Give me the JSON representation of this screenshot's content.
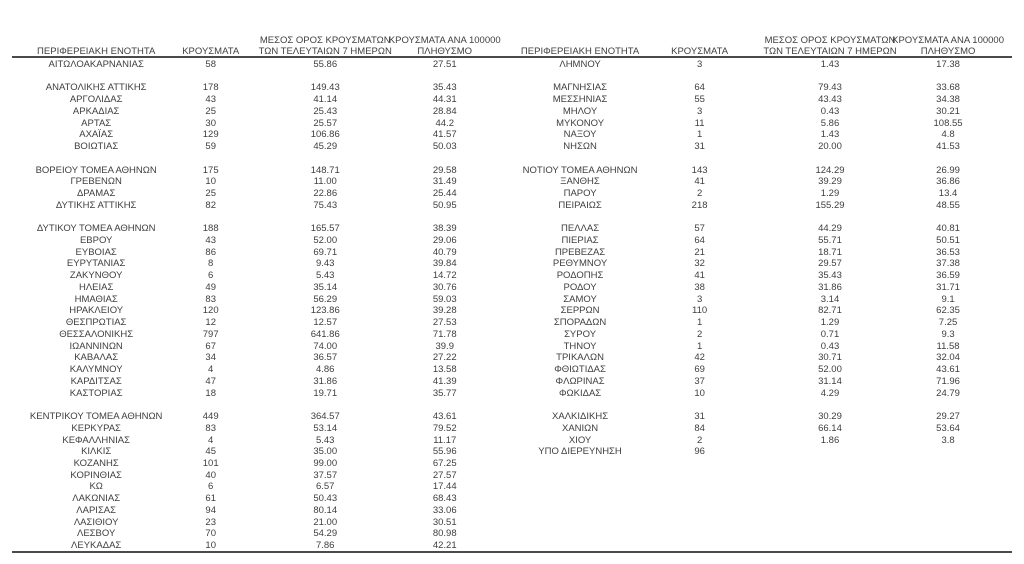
{
  "headers": {
    "region": "ΠΕΡΙΦΕΡΕΙΑΚΗ ΕΝΟΤΗΤΑ",
    "cases": "ΚΡΟΥΣΜΑΤΑ",
    "avg7_line1": "ΜΕΣΟΣ ΟΡΟΣ ΚΡΟΥΣΜΑΤΩΝ",
    "avg7_line2": "ΤΩΝ ΤΕΛΕΥΤΑΙΩΝ 7 ΗΜΕΡΩΝ",
    "per100k_line1": "ΚΡΟΥΣΜΑΤΑ ΑΝΑ 100000",
    "per100k_line2": "ΠΛΗΘΥΣΜΟ"
  },
  "left_table": {
    "rows": [
      [
        "ΑΙΤΩΛΟΑΚΑΡΝΑΝΙΑΣ",
        "58",
        "55.86",
        "27.51"
      ],
      [
        "",
        "",
        "",
        ""
      ],
      [
        "ΑΝΑΤΟΛΙΚΗΣ ΑΤΤΙΚΗΣ",
        "178",
        "149.43",
        "35.43"
      ],
      [
        "ΑΡΓΟΛΙΔΑΣ",
        "43",
        "41.14",
        "44.31"
      ],
      [
        "ΑΡΚΑΔΙΑΣ",
        "25",
        "25.43",
        "28.84"
      ],
      [
        "ΑΡΤΑΣ",
        "30",
        "25.57",
        "44.2"
      ],
      [
        "ΑΧΑΪΑΣ",
        "129",
        "106.86",
        "41.57"
      ],
      [
        "ΒΟΙΩΤΙΑΣ",
        "59",
        "45.29",
        "50.03"
      ],
      [
        "",
        "",
        "",
        ""
      ],
      [
        "ΒΟΡΕΙΟΥ ΤΟΜΕΑ ΑΘΗΝΩΝ",
        "175",
        "148.71",
        "29.58"
      ],
      [
        "ΓΡΕΒΕΝΩΝ",
        "10",
        "11.00",
        "31.49"
      ],
      [
        "ΔΡΑΜΑΣ",
        "25",
        "22.86",
        "25.44"
      ],
      [
        "ΔΥΤΙΚΗΣ ΑΤΤΙΚΗΣ",
        "82",
        "75.43",
        "50.95"
      ],
      [
        "",
        "",
        "",
        ""
      ],
      [
        "ΔΥΤΙΚΟΥ ΤΟΜΕΑ ΑΘΗΝΩΝ",
        "188",
        "165.57",
        "38.39"
      ],
      [
        "ΕΒΡΟΥ",
        "43",
        "52.00",
        "29.06"
      ],
      [
        "ΕΥΒΟΙΑΣ",
        "86",
        "69.71",
        "40.79"
      ],
      [
        "ΕΥΡΥΤΑΝΙΑΣ",
        "8",
        "9.43",
        "39.84"
      ],
      [
        "ΖΑΚΥΝΘΟΥ",
        "6",
        "5.43",
        "14.72"
      ],
      [
        "ΗΛΕΙΑΣ",
        "49",
        "35.14",
        "30.76"
      ],
      [
        "ΗΜΑΘΙΑΣ",
        "83",
        "56.29",
        "59.03"
      ],
      [
        "ΗΡΑΚΛΕΙΟΥ",
        "120",
        "123.86",
        "39.28"
      ],
      [
        "ΘΕΣΠΡΩΤΙΑΣ",
        "12",
        "12.57",
        "27.53"
      ],
      [
        "ΘΕΣΣΑΛΟΝΙΚΗΣ",
        "797",
        "641.86",
        "71.78"
      ],
      [
        "ΙΩΑΝΝΙΝΩΝ",
        "67",
        "74.00",
        "39.9"
      ],
      [
        "ΚΑΒΑΛΑΣ",
        "34",
        "36.57",
        "27.22"
      ],
      [
        "ΚΑΛΥΜΝΟΥ",
        "4",
        "4.86",
        "13.58"
      ],
      [
        "ΚΑΡΔΙΤΣΑΣ",
        "47",
        "31.86",
        "41.39"
      ],
      [
        "ΚΑΣΤΟΡΙΑΣ",
        "18",
        "19.71",
        "35.77"
      ],
      [
        "",
        "",
        "",
        ""
      ],
      [
        "ΚΕΝΤΡΙΚΟΥ ΤΟΜΕΑ ΑΘΗΝΩΝ",
        "449",
        "364.57",
        "43.61"
      ],
      [
        "ΚΕΡΚΥΡΑΣ",
        "83",
        "53.14",
        "79.52"
      ],
      [
        "ΚΕΦΑΛΛΗΝΙΑΣ",
        "4",
        "5.43",
        "11.17"
      ],
      [
        "ΚΙΛΚΙΣ",
        "45",
        "35.00",
        "55.96"
      ],
      [
        "ΚΟΖΑΝΗΣ",
        "101",
        "99.00",
        "67.25"
      ],
      [
        "ΚΟΡΙΝΘΙΑΣ",
        "40",
        "37.57",
        "27.57"
      ],
      [
        "ΚΩ",
        "6",
        "6.57",
        "17.44"
      ],
      [
        "ΛΑΚΩΝΙΑΣ",
        "61",
        "50.43",
        "68.43"
      ],
      [
        "ΛΑΡΙΣΑΣ",
        "94",
        "80.14",
        "33.06"
      ],
      [
        "ΛΑΣΙΘΙΟΥ",
        "23",
        "21.00",
        "30.51"
      ],
      [
        "ΛΕΣΒΟΥ",
        "70",
        "54.29",
        "80.98"
      ],
      [
        "ΛΕΥΚΑΔΑΣ",
        "10",
        "7.86",
        "42.21"
      ]
    ]
  },
  "right_table": {
    "rows": [
      [
        "ΛΗΜΝΟΥ",
        "3",
        "1.43",
        "17.38"
      ],
      [
        "",
        "",
        "",
        ""
      ],
      [
        "ΜΑΓΝΗΣΙΑΣ",
        "64",
        "79.43",
        "33.68"
      ],
      [
        "ΜΕΣΣΗΝΙΑΣ",
        "55",
        "43.43",
        "34.38"
      ],
      [
        "ΜΗΛΟΥ",
        "3",
        "0.43",
        "30.21"
      ],
      [
        "ΜΥΚΟΝΟΥ",
        "11",
        "5.86",
        "108.55"
      ],
      [
        "ΝΑΞΟΥ",
        "1",
        "1.43",
        "4.8"
      ],
      [
        "ΝΗΣΩΝ",
        "31",
        "20.00",
        "41.53"
      ],
      [
        "",
        "",
        "",
        ""
      ],
      [
        "ΝΟΤΙΟΥ ΤΟΜΕΑ ΑΘΗΝΩΝ",
        "143",
        "124.29",
        "26.99"
      ],
      [
        "ΞΑΝΘΗΣ",
        "41",
        "39.29",
        "36.86"
      ],
      [
        "ΠΑΡΟΥ",
        "2",
        "1.29",
        "13.4"
      ],
      [
        "ΠΕΙΡΑΙΩΣ",
        "218",
        "155.29",
        "48.55"
      ],
      [
        "",
        "",
        "",
        ""
      ],
      [
        "ΠΕΛΛΑΣ",
        "57",
        "44.29",
        "40.81"
      ],
      [
        "ΠΙΕΡΙΑΣ",
        "64",
        "55.71",
        "50.51"
      ],
      [
        "ΠΡΕΒΕΖΑΣ",
        "21",
        "18.71",
        "36.53"
      ],
      [
        "ΡΕΘΥΜΝΟΥ",
        "32",
        "29.57",
        "37.38"
      ],
      [
        "ΡΟΔΟΠΗΣ",
        "41",
        "35.43",
        "36.59"
      ],
      [
        "ΡΟΔΟΥ",
        "38",
        "31.86",
        "31.71"
      ],
      [
        "ΣΑΜΟΥ",
        "3",
        "3.14",
        "9.1"
      ],
      [
        "ΣΕΡΡΩΝ",
        "110",
        "82.71",
        "62.35"
      ],
      [
        "ΣΠΟΡΑΔΩΝ",
        "1",
        "1.29",
        "7.25"
      ],
      [
        "ΣΥΡΟΥ",
        "2",
        "0.71",
        "9.3"
      ],
      [
        "ΤΗΝΟΥ",
        "1",
        "0.43",
        "11.58"
      ],
      [
        "ΤΡΙΚΑΛΩΝ",
        "42",
        "30.71",
        "32.04"
      ],
      [
        "ΦΘΙΩΤΙΔΑΣ",
        "69",
        "52.00",
        "43.61"
      ],
      [
        "ΦΛΩΡΙΝΑΣ",
        "37",
        "31.14",
        "71.96"
      ],
      [
        "ΦΩΚΙΔΑΣ",
        "10",
        "4.29",
        "24.79"
      ],
      [
        "",
        "",
        "",
        ""
      ],
      [
        "ΧΑΛΚΙΔΙΚΗΣ",
        "31",
        "30.29",
        "29.27"
      ],
      [
        "ΧΑΝΙΩΝ",
        "84",
        "66.14",
        "53.64"
      ],
      [
        "ΧΙΟΥ",
        "2",
        "1.86",
        "3.8"
      ],
      [
        "ΥΠΟ ΔΙΕΡΕΥΝΗΣΗ",
        "96",
        "",
        ""
      ]
    ]
  }
}
